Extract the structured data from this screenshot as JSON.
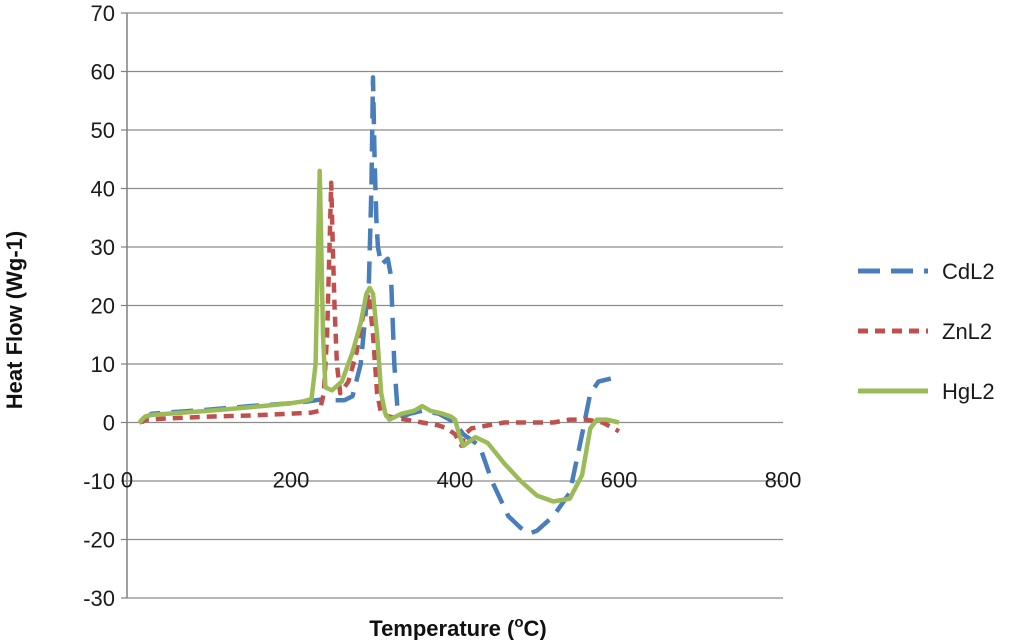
{
  "chart_data": {
    "type": "line",
    "xlabel": "Temperature (",
    "xlabel_sup": "o",
    "xlabel_end": "C)",
    "ylabel": "Heat Flow (Wg-1)",
    "xlim": [
      0,
      800
    ],
    "ylim": [
      -30,
      70
    ],
    "x_ticks": [
      "0",
      "200",
      "400",
      "600",
      "800"
    ],
    "y_ticks": [
      "70",
      "60",
      "50",
      "40",
      "30",
      "20",
      "10",
      "0",
      "-10",
      "-20",
      "-30"
    ],
    "grid": "horizontal major gridlines",
    "legend_position": "right",
    "series": [
      {
        "name": "CdL2",
        "color": "#4a7ebb",
        "style": "long-dash",
        "points": [
          [
            18,
            0
          ],
          [
            25,
            1
          ],
          [
            30,
            1.5
          ],
          [
            100,
            2.2
          ],
          [
            150,
            2.8
          ],
          [
            200,
            3.3
          ],
          [
            215,
            3.5
          ],
          [
            230,
            3.8
          ],
          [
            240,
            4
          ],
          [
            250,
            3.8
          ],
          [
            265,
            3.8
          ],
          [
            275,
            4.5
          ],
          [
            285,
            10
          ],
          [
            292,
            20
          ],
          [
            295,
            24
          ],
          [
            298,
            40
          ],
          [
            300,
            59
          ],
          [
            302,
            45
          ],
          [
            304,
            35
          ],
          [
            306,
            30
          ],
          [
            310,
            27
          ],
          [
            318,
            28
          ],
          [
            322,
            25
          ],
          [
            326,
            10
          ],
          [
            330,
            2
          ],
          [
            336,
            1
          ],
          [
            345,
            1.5
          ],
          [
            360,
            2
          ],
          [
            380,
            1.5
          ],
          [
            400,
            0
          ],
          [
            410,
            -2
          ],
          [
            420,
            -3
          ],
          [
            430,
            -4
          ],
          [
            445,
            -10
          ],
          [
            465,
            -16
          ],
          [
            480,
            -18
          ],
          [
            490,
            -19
          ],
          [
            500,
            -18.5
          ],
          [
            520,
            -16
          ],
          [
            540,
            -12
          ],
          [
            555,
            -2
          ],
          [
            565,
            5
          ],
          [
            575,
            7
          ],
          [
            590,
            7.5
          ]
        ]
      },
      {
        "name": "ZnL2",
        "color": "#c0504d",
        "style": "short-dash",
        "points": [
          [
            15,
            0
          ],
          [
            25,
            0.5
          ],
          [
            50,
            0.7
          ],
          [
            100,
            1
          ],
          [
            150,
            1.2
          ],
          [
            200,
            1.5
          ],
          [
            225,
            1.7
          ],
          [
            235,
            2
          ],
          [
            240,
            5
          ],
          [
            244,
            15
          ],
          [
            247,
            30
          ],
          [
            249,
            41
          ],
          [
            251,
            30
          ],
          [
            253,
            20
          ],
          [
            256,
            10
          ],
          [
            260,
            5
          ],
          [
            270,
            7
          ],
          [
            280,
            12
          ],
          [
            290,
            20
          ],
          [
            295,
            22
          ],
          [
            300,
            15
          ],
          [
            305,
            5
          ],
          [
            310,
            1.5
          ],
          [
            320,
            1
          ],
          [
            340,
            0.5
          ],
          [
            360,
            0
          ],
          [
            380,
            -0.5
          ],
          [
            390,
            -1
          ],
          [
            400,
            -2
          ],
          [
            408,
            -4
          ],
          [
            412,
            -2
          ],
          [
            420,
            -1
          ],
          [
            440,
            -0.5
          ],
          [
            460,
            0
          ],
          [
            480,
            0
          ],
          [
            500,
            0
          ],
          [
            520,
            0
          ],
          [
            540,
            0.5
          ],
          [
            560,
            0.5
          ],
          [
            580,
            0
          ],
          [
            600,
            -1.5
          ]
        ]
      },
      {
        "name": "HgL2",
        "color": "#9bbb59",
        "style": "solid",
        "points": [
          [
            15,
            0
          ],
          [
            22,
            1
          ],
          [
            30,
            1.3
          ],
          [
            100,
            2
          ],
          [
            150,
            2.6
          ],
          [
            200,
            3.3
          ],
          [
            215,
            3.6
          ],
          [
            225,
            4
          ],
          [
            230,
            10
          ],
          [
            233,
            30
          ],
          [
            235,
            43
          ],
          [
            237,
            30
          ],
          [
            239,
            15
          ],
          [
            242,
            6
          ],
          [
            250,
            5.5
          ],
          [
            262,
            7
          ],
          [
            275,
            12
          ],
          [
            285,
            17
          ],
          [
            292,
            22
          ],
          [
            296,
            23
          ],
          [
            300,
            22
          ],
          [
            305,
            15
          ],
          [
            310,
            5
          ],
          [
            315,
            1.5
          ],
          [
            320,
            0.5
          ],
          [
            335,
            1.5
          ],
          [
            350,
            2
          ],
          [
            360,
            2.8
          ],
          [
            370,
            2
          ],
          [
            385,
            1.5
          ],
          [
            395,
            1
          ],
          [
            400,
            0.5
          ],
          [
            405,
            -2
          ],
          [
            410,
            -4
          ],
          [
            415,
            -3.5
          ],
          [
            425,
            -2.5
          ],
          [
            440,
            -3.5
          ],
          [
            460,
            -7
          ],
          [
            480,
            -10
          ],
          [
            500,
            -12.5
          ],
          [
            520,
            -13.5
          ],
          [
            540,
            -13
          ],
          [
            555,
            -9
          ],
          [
            565,
            -1
          ],
          [
            573,
            0.5
          ],
          [
            585,
            0.5
          ],
          [
            600,
            0
          ]
        ]
      }
    ]
  }
}
